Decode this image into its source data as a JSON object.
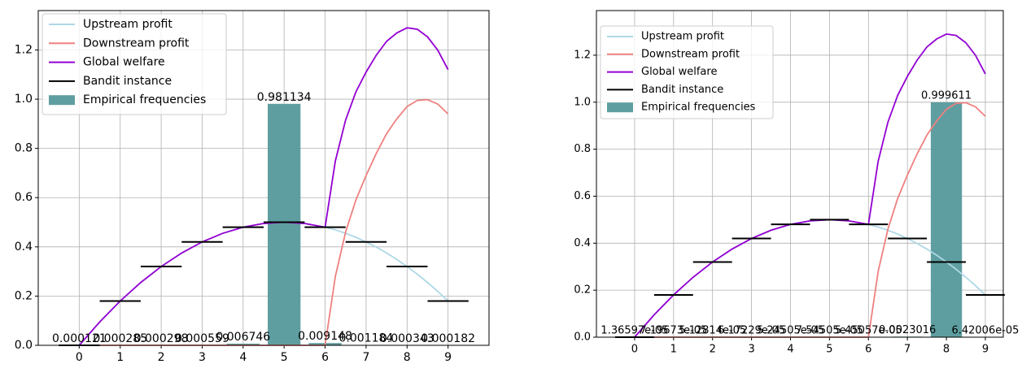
{
  "chart_data": [
    {
      "type": "combo",
      "x": [
        0,
        0.5,
        1,
        1.5,
        2,
        2.5,
        3,
        3.5,
        4,
        4.5,
        5,
        5.5,
        6,
        6.25,
        6.5,
        6.75,
        7,
        7.25,
        7.5,
        7.75,
        8,
        8.25,
        8.5,
        8.75,
        9
      ],
      "series": [
        {
          "name": "Upstream profit",
          "kind": "line",
          "color": "#add8e6",
          "values": [
            0,
            0.095,
            0.18,
            0.255,
            0.32,
            0.375,
            0.42,
            0.455,
            0.48,
            0.495,
            0.5,
            0.495,
            0.48,
            0.469,
            0.455,
            0.439,
            0.42,
            0.399,
            0.375,
            0.349,
            0.32,
            0.289,
            0.255,
            0.219,
            0.18
          ]
        },
        {
          "name": "Downstream profit",
          "kind": "line",
          "color": "#f08080",
          "values": [
            0,
            0,
            0,
            0,
            0,
            0,
            0,
            0,
            0,
            0,
            0,
            0,
            0,
            0.28,
            0.46,
            0.59,
            0.69,
            0.78,
            0.86,
            0.92,
            0.97,
            0.995,
            0.998,
            0.98,
            0.94
          ]
        },
        {
          "name": "Global welfare",
          "kind": "line",
          "color": "#9400d3",
          "values": [
            0,
            0.095,
            0.18,
            0.255,
            0.32,
            0.375,
            0.42,
            0.455,
            0.48,
            0.495,
            0.5,
            0.495,
            0.48,
            0.749,
            0.915,
            1.029,
            1.11,
            1.179,
            1.235,
            1.269,
            1.29,
            1.284,
            1.253,
            1.199,
            1.12
          ]
        },
        {
          "name": "Bandit instance",
          "kind": "segments",
          "color": "#000000",
          "x": [
            0,
            1,
            2,
            3,
            4,
            5,
            6,
            7,
            8,
            9
          ],
          "values": [
            0,
            0.18,
            0.32,
            0.42,
            0.48,
            0.5,
            0.48,
            0.42,
            0.32,
            0.18
          ]
        },
        {
          "name": "Empirical frequencies",
          "kind": "bar",
          "color": "#5f9ea0",
          "x": [
            0,
            1,
            2,
            3,
            4,
            5,
            6,
            7,
            8,
            9
          ],
          "values": [
            0.000121,
            0.000285,
            0.000298,
            0.000559,
            0.006746,
            0.981134,
            0.009148,
            0.001184,
            0.000343,
            0.000182
          ]
        }
      ],
      "xlim": [
        -1,
        10
      ],
      "xticks": [
        0,
        1,
        2,
        3,
        4,
        5,
        6,
        7,
        8,
        9
      ],
      "ylim": [
        0,
        1.36
      ],
      "yticks": [
        {
          "value": 0,
          "label": "0.0"
        },
        0.2,
        0.4,
        0.6,
        0.8,
        {
          "value": 1,
          "label": "1.0"
        },
        1.2
      ],
      "grid": true,
      "legend": "upper left"
    },
    {
      "type": "combo",
      "x": [
        0,
        0.5,
        1,
        1.5,
        2,
        2.5,
        3,
        3.5,
        4,
        4.5,
        5,
        5.5,
        6,
        6.25,
        6.5,
        6.75,
        7,
        7.25,
        7.5,
        7.75,
        8,
        8.25,
        8.5,
        8.75,
        9
      ],
      "series": [
        {
          "name": "Upstream profit",
          "kind": "line",
          "color": "#add8e6",
          "values": [
            0,
            0.095,
            0.18,
            0.255,
            0.32,
            0.375,
            0.42,
            0.455,
            0.48,
            0.495,
            0.5,
            0.495,
            0.48,
            0.469,
            0.455,
            0.439,
            0.42,
            0.399,
            0.375,
            0.349,
            0.32,
            0.289,
            0.255,
            0.219,
            0.18
          ]
        },
        {
          "name": "Downstream profit",
          "kind": "line",
          "color": "#f08080",
          "values": [
            0,
            0,
            0,
            0,
            0,
            0,
            0,
            0,
            0,
            0,
            0,
            0,
            0,
            0.28,
            0.46,
            0.59,
            0.69,
            0.78,
            0.86,
            0.92,
            0.97,
            0.995,
            0.998,
            0.98,
            0.94
          ]
        },
        {
          "name": "Global welfare",
          "kind": "line",
          "color": "#9400d3",
          "values": [
            0,
            0.095,
            0.18,
            0.255,
            0.32,
            0.375,
            0.42,
            0.455,
            0.48,
            0.495,
            0.5,
            0.495,
            0.48,
            0.749,
            0.915,
            1.029,
            1.11,
            1.179,
            1.235,
            1.269,
            1.29,
            1.284,
            1.253,
            1.199,
            1.12
          ]
        },
        {
          "name": "Bandit instance",
          "kind": "segments",
          "color": "#000000",
          "x": [
            0,
            1,
            2,
            3,
            4,
            5,
            6,
            7,
            8,
            9
          ],
          "values": [
            0,
            0.18,
            0.32,
            0.42,
            0.48,
            0.5,
            0.48,
            0.42,
            0.32,
            0.18
          ]
        },
        {
          "name": "Empirical frequencies",
          "kind": "bar",
          "color": "#5f9ea0",
          "x": [
            0,
            1,
            2,
            3,
            4,
            5,
            6,
            7,
            8,
            9
          ],
          "values": [
            1.36597e-05,
            7.19673e-05,
            5.12814e-05,
            6.17229e-05,
            5.24505e-05,
            7.54505e-05,
            5.45057e-05,
            0.0023016,
            0.999611,
            6.42006e-05
          ],
          "value_labels": [
            "1.36597e-05",
            "7.19673e-05",
            "5.12814e-05",
            "6.17229e-05",
            "5.24505e-05",
            "7.54505e-05",
            "5.45057e-05",
            "0.0023016",
            "0.999611",
            "6.42006e-05"
          ]
        }
      ],
      "xlim": [
        -0.98,
        9.46
      ],
      "xticks": [
        0,
        1,
        2,
        3,
        4,
        5,
        6,
        7,
        8,
        9
      ],
      "ylim": [
        0,
        1.39
      ],
      "yticks": [
        {
          "value": 0,
          "label": "0.0"
        },
        0.2,
        0.4,
        0.6,
        0.8,
        {
          "value": 1,
          "label": "1.0"
        },
        1.2
      ],
      "grid": true,
      "legend": "upper left"
    }
  ]
}
